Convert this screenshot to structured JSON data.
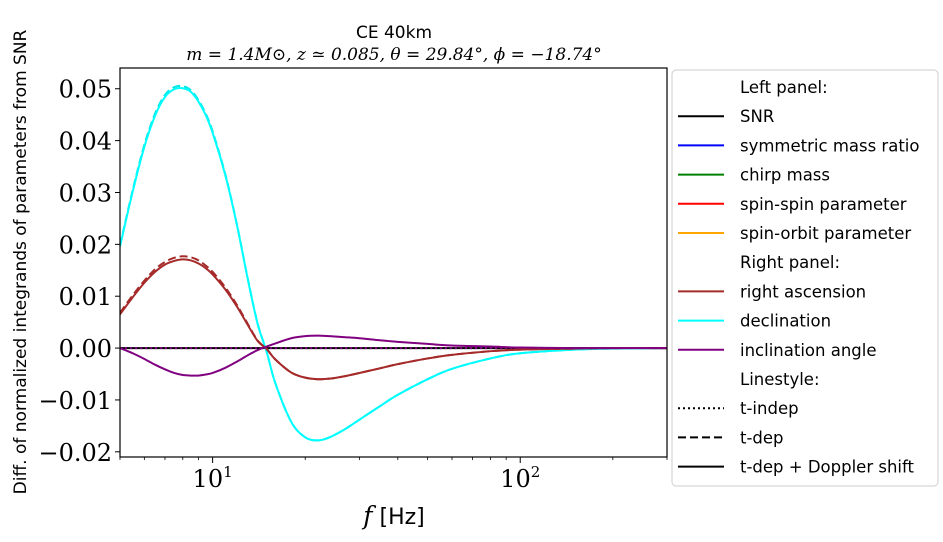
{
  "chart_data": {
    "type": "line",
    "title": "CE 40km",
    "subtitle": "m = 1.4M⊙, z ≃ 0.085, θ = 29.84°, ϕ = −18.74°",
    "xlabel_italic": "f",
    "xlabel_rest": " [Hz]",
    "ylabel": "Diff. of normalized integrands of parameters from SNR",
    "xscale": "log",
    "xlim": [
      5,
      300
    ],
    "ylim": [
      -0.021,
      0.054
    ],
    "yticks": [
      {
        "value": 0.05,
        "label": "0.05"
      },
      {
        "value": 0.04,
        "label": "0.04"
      },
      {
        "value": 0.03,
        "label": "0.03"
      },
      {
        "value": 0.02,
        "label": "0.02"
      },
      {
        "value": 0.01,
        "label": "0.01"
      },
      {
        "value": 0.0,
        "label": "0.00"
      },
      {
        "value": -0.01,
        "label": "−0.01"
      },
      {
        "value": -0.02,
        "label": "−0.02"
      }
    ],
    "xticks_major": [
      {
        "value": 10,
        "base": "10",
        "exp": "1"
      },
      {
        "value": 100,
        "base": "10",
        "exp": "2"
      }
    ],
    "xticks_minor": [
      5,
      6,
      7,
      8,
      9,
      20,
      30,
      40,
      50,
      60,
      70,
      80,
      90,
      200,
      300
    ],
    "x": [
      5,
      5.5,
      6,
      6.5,
      7,
      7.5,
      8,
      8.5,
      9,
      9.5,
      10,
      11,
      12,
      13,
      14,
      15,
      16,
      18,
      20,
      22,
      24,
      27,
      30,
      35,
      40,
      50,
      60,
      80,
      100,
      150,
      200,
      300
    ],
    "series": [
      {
        "name": "SNR",
        "color": "#000000",
        "dash": "solid",
        "values": [
          0,
          0,
          0,
          0,
          0,
          0,
          0,
          0,
          0,
          0,
          0,
          0,
          0,
          0,
          0,
          0,
          0,
          0,
          0,
          0,
          0,
          0,
          0,
          0,
          0,
          0,
          0,
          0,
          0,
          0,
          0,
          0
        ]
      },
      {
        "name": "inclination angle (t-indep)",
        "color": "#800080",
        "dash": "dotted",
        "values": [
          0,
          0,
          0,
          0,
          0,
          0,
          0,
          0,
          0,
          0,
          0,
          0,
          0,
          0,
          0,
          0,
          0,
          0,
          0,
          0,
          0,
          0,
          0,
          0,
          0,
          0,
          0,
          0,
          0,
          0,
          0,
          0
        ]
      },
      {
        "name": "declination (t-dep)",
        "color": "#00e5e5",
        "dash": "dashed",
        "values": [
          0.0198,
          0.0305,
          0.0392,
          0.0452,
          0.0488,
          0.0503,
          0.0505,
          0.0497,
          0.0478,
          0.0452,
          0.0418,
          0.0335,
          0.0238,
          0.0135,
          0.0048,
          -0.0008,
          -0.0068,
          -0.0142,
          -0.0172,
          -0.0178,
          -0.0172,
          -0.0156,
          -0.0138,
          -0.0112,
          -0.009,
          -0.006,
          -0.004,
          -0.002,
          -0.001,
          -0.0003,
          -0.0001,
          0.0
        ]
      },
      {
        "name": "declination",
        "color": "#00ffff",
        "dash": "solid",
        "values": [
          0.0196,
          0.0302,
          0.0388,
          0.0448,
          0.0484,
          0.0499,
          0.0501,
          0.0494,
          0.0475,
          0.0449,
          0.0415,
          0.0333,
          0.0237,
          0.0134,
          0.0047,
          -0.0008,
          -0.0068,
          -0.0142,
          -0.0172,
          -0.0178,
          -0.0172,
          -0.0156,
          -0.0138,
          -0.0112,
          -0.009,
          -0.006,
          -0.004,
          -0.002,
          -0.001,
          -0.0003,
          -0.0001,
          0.0
        ]
      },
      {
        "name": "right ascension (t-dep)",
        "color": "#a52a2a",
        "dash": "dashed",
        "values": [
          0.0068,
          0.0102,
          0.013,
          0.0152,
          0.0166,
          0.0174,
          0.0177,
          0.0175,
          0.0169,
          0.0159,
          0.0147,
          0.0117,
          0.0083,
          0.0047,
          0.0015,
          -0.0002,
          -0.0022,
          -0.0047,
          -0.0057,
          -0.006,
          -0.0059,
          -0.0054,
          -0.0048,
          -0.0039,
          -0.0031,
          -0.002,
          -0.0013,
          -0.0006,
          -0.0003,
          -0.0001,
          0.0,
          0.0
        ]
      },
      {
        "name": "right ascension",
        "color": "#a52a2a",
        "dash": "solid",
        "values": [
          0.0065,
          0.0098,
          0.0126,
          0.0147,
          0.0161,
          0.0168,
          0.0171,
          0.0169,
          0.0163,
          0.0154,
          0.0142,
          0.0113,
          0.008,
          0.0045,
          0.0014,
          -0.0002,
          -0.0022,
          -0.0047,
          -0.0057,
          -0.006,
          -0.0059,
          -0.0054,
          -0.0048,
          -0.0039,
          -0.0031,
          -0.002,
          -0.0013,
          -0.0006,
          -0.0003,
          -0.0001,
          0.0,
          0.0
        ]
      },
      {
        "name": "inclination angle",
        "color": "#800080",
        "dash": "solid",
        "values": [
          0.0,
          -0.001,
          -0.0021,
          -0.0032,
          -0.0041,
          -0.0048,
          -0.0052,
          -0.0053,
          -0.0053,
          -0.0051,
          -0.0048,
          -0.0038,
          -0.0026,
          -0.0014,
          -0.0004,
          0.0003,
          0.0009,
          0.0019,
          0.0023,
          0.0024,
          0.0023,
          0.0021,
          0.0019,
          0.0015,
          0.0012,
          0.0008,
          0.0005,
          0.0003,
          0.0001,
          0.0,
          0.0,
          0.0
        ]
      }
    ],
    "legend": {
      "position": "outside-right",
      "entries": [
        {
          "label": "Left panel:",
          "color": "",
          "dash": "none"
        },
        {
          "label": "SNR",
          "color": "#000000",
          "dash": "solid"
        },
        {
          "label": "symmetric mass ratio",
          "color": "#0000ff",
          "dash": "solid"
        },
        {
          "label": "chirp mass",
          "color": "#008000",
          "dash": "solid"
        },
        {
          "label": "spin-spin parameter",
          "color": "#ff0000",
          "dash": "solid"
        },
        {
          "label": "spin-orbit parameter",
          "color": "#ffa500",
          "dash": "solid"
        },
        {
          "label": "Right panel:",
          "color": "",
          "dash": "none"
        },
        {
          "label": "right ascension",
          "color": "#a52a2a",
          "dash": "solid"
        },
        {
          "label": "declination",
          "color": "#00ffff",
          "dash": "solid"
        },
        {
          "label": "inclination angle",
          "color": "#800080",
          "dash": "solid"
        },
        {
          "label": "Linestyle:",
          "color": "",
          "dash": "none"
        },
        {
          "label": "t-indep",
          "color": "#000000",
          "dash": "dotted"
        },
        {
          "label": "t-dep",
          "color": "#000000",
          "dash": "dashed"
        },
        {
          "label": "t-dep + Doppler shift",
          "color": "#000000",
          "dash": "solid"
        }
      ]
    }
  }
}
